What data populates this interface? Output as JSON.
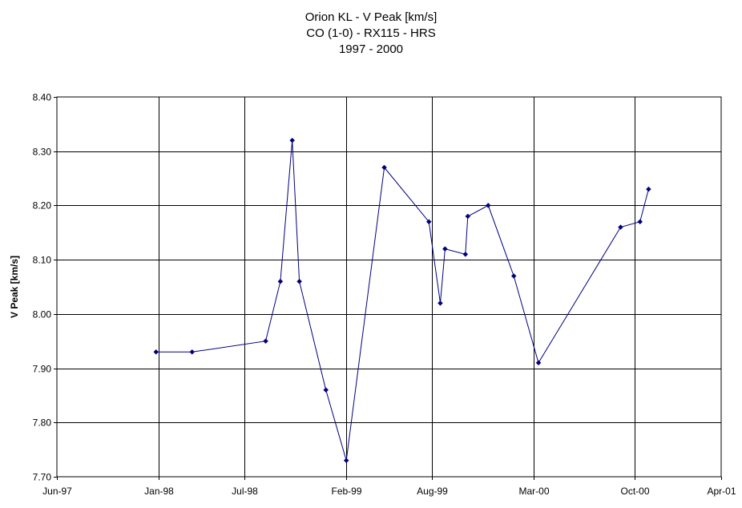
{
  "chart_data": {
    "type": "line",
    "title_lines": [
      "Orion KL - V Peak [km/s]",
      "CO (1-0) - RX115 - HRS",
      "1997 - 2000"
    ],
    "ylabel": "V Peak [km/s]",
    "xlabel": "",
    "ylim": [
      7.7,
      8.4
    ],
    "xlim": [
      "1997-06-01",
      "2001-04-01"
    ],
    "y_ticks": [
      "7.70",
      "7.80",
      "7.90",
      "8.00",
      "8.10",
      "8.20",
      "8.30",
      "8.40"
    ],
    "x_ticks": [
      {
        "date": "1997-06-01",
        "label": "Jun-97"
      },
      {
        "date": "1998-01-01",
        "label": "Jan-98"
      },
      {
        "date": "1998-07-01",
        "label": "Jul-98"
      },
      {
        "date": "1999-02-01",
        "label": "Feb-99"
      },
      {
        "date": "1999-08-01",
        "label": "Aug-99"
      },
      {
        "date": "2000-03-01",
        "label": "Mar-00"
      },
      {
        "date": "2000-10-01",
        "label": "Oct-00"
      },
      {
        "date": "2001-04-01",
        "label": "Apr-01"
      }
    ],
    "grid": true,
    "series": [
      {
        "color": "#000080",
        "points": [
          {
            "x": "1997-12-27",
            "y": 7.93
          },
          {
            "x": "1998-03-13",
            "y": 7.93
          },
          {
            "x": "1998-08-15",
            "y": 7.95
          },
          {
            "x": "1998-09-15",
            "y": 8.06
          },
          {
            "x": "1998-10-10",
            "y": 8.32
          },
          {
            "x": "1998-10-25",
            "y": 8.06
          },
          {
            "x": "1998-12-20",
            "y": 7.86
          },
          {
            "x": "1999-02-01",
            "y": 7.73
          },
          {
            "x": "1999-04-22",
            "y": 8.27
          },
          {
            "x": "1999-07-25",
            "y": 8.17
          },
          {
            "x": "1999-08-18",
            "y": 8.02
          },
          {
            "x": "1999-08-28",
            "y": 8.12
          },
          {
            "x": "1999-10-10",
            "y": 8.11
          },
          {
            "x": "1999-10-15",
            "y": 8.18
          },
          {
            "x": "1999-11-27",
            "y": 8.2
          },
          {
            "x": "2000-01-20",
            "y": 8.07
          },
          {
            "x": "2000-03-12",
            "y": 7.91
          },
          {
            "x": "2000-09-01",
            "y": 8.16
          },
          {
            "x": "2000-10-12",
            "y": 8.17
          },
          {
            "x": "2000-10-30",
            "y": 8.23
          }
        ]
      }
    ]
  }
}
